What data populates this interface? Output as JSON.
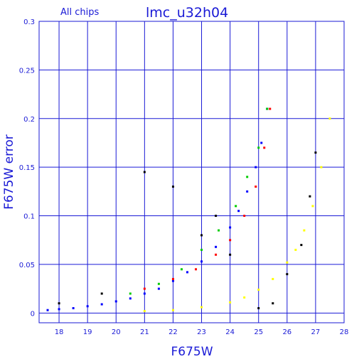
{
  "chart_data": {
    "type": "scatter",
    "title": "lmc_u32h04",
    "subtitle": "All chips",
    "xlabel": "F675W",
    "ylabel": "F675W error",
    "xlim": [
      17.3,
      28.0
    ],
    "ylim": [
      -0.01,
      0.3
    ],
    "grid": true,
    "xticks": [
      "18",
      "19",
      "20",
      "21",
      "22",
      "23",
      "24",
      "25",
      "26",
      "27",
      "28"
    ],
    "yticks": [
      "0",
      "0.05",
      "0.1",
      "0.15",
      "0.2",
      "0.25",
      "0.3"
    ],
    "series": [
      {
        "color": "#0000ff",
        "x": [
          17.6,
          18.0,
          18.5,
          19.0,
          19.5,
          20.0,
          20.5,
          21.0,
          21.5,
          22.0,
          22.5,
          23.0,
          23.5,
          24.0,
          24.3,
          24.6,
          24.9,
          25.1,
          25.3
        ],
        "y": [
          0.003,
          0.004,
          0.005,
          0.007,
          0.009,
          0.012,
          0.015,
          0.02,
          0.025,
          0.033,
          0.042,
          0.053,
          0.068,
          0.088,
          0.105,
          0.125,
          0.15,
          0.175,
          0.21
        ]
      },
      {
        "color": "#ff0000",
        "x": [
          21.0,
          22.0,
          22.8,
          23.5,
          24.0,
          24.5,
          24.9,
          25.2,
          25.4
        ],
        "y": [
          0.025,
          0.035,
          0.045,
          0.06,
          0.075,
          0.1,
          0.13,
          0.17,
          0.21
        ]
      },
      {
        "color": "#00cc00",
        "x": [
          20.5,
          21.5,
          22.3,
          23.0,
          23.6,
          24.2,
          24.6,
          25.0,
          25.3
        ],
        "y": [
          0.02,
          0.03,
          0.045,
          0.065,
          0.085,
          0.11,
          0.14,
          0.17,
          0.21
        ]
      },
      {
        "color": "#ffff00",
        "x": [
          21.0,
          22.0,
          23.0,
          24.0,
          24.5,
          25.0,
          25.5,
          26.0,
          26.3,
          26.6,
          26.9,
          27.2,
          27.5
        ],
        "y": [
          0.002,
          0.003,
          0.006,
          0.011,
          0.016,
          0.024,
          0.035,
          0.052,
          0.065,
          0.085,
          0.11,
          0.15,
          0.2
        ]
      },
      {
        "color": "#000000",
        "x": [
          18.0,
          19.5,
          21.0,
          22.0,
          23.0,
          23.5,
          24.0,
          25.0,
          25.5,
          26.0,
          26.5,
          26.8,
          27.0
        ],
        "y": [
          0.01,
          0.02,
          0.145,
          0.13,
          0.08,
          0.1,
          0.06,
          0.005,
          0.01,
          0.04,
          0.07,
          0.12,
          0.165
        ]
      }
    ]
  }
}
